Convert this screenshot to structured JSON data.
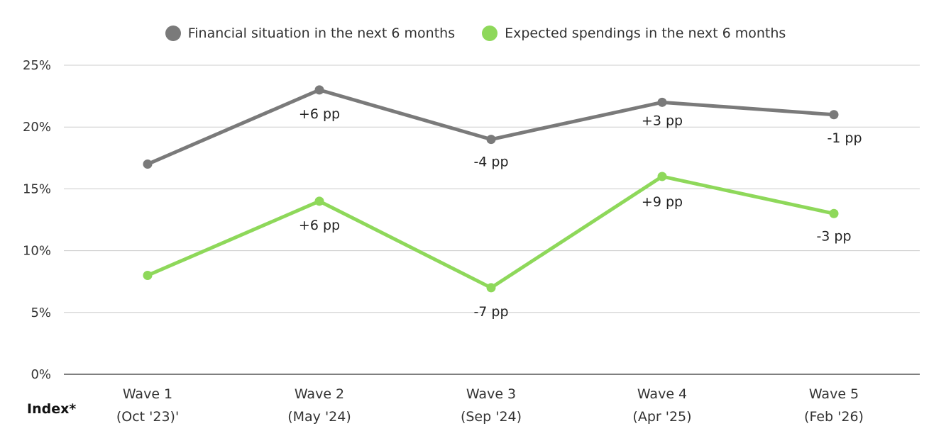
{
  "legend": {
    "series0": "Financial situation in the next 6 months",
    "series1": "Expected spendings in the next 6 months"
  },
  "row_label": "Index*",
  "colors": {
    "series0": "#7a7a7a",
    "series1": "#8ed85a",
    "grid": "#cccccc",
    "axis": "#555555"
  },
  "chart_data": {
    "type": "line",
    "categories": [
      [
        "Wave 1",
        "(Oct '23)'"
      ],
      [
        "Wave 2",
        "(May '24)"
      ],
      [
        "Wave 3",
        "(Sep '24)"
      ],
      [
        "Wave 4",
        "(Apr '25)"
      ],
      [
        "Wave 5",
        "(Feb '26)"
      ]
    ],
    "ylim": [
      0,
      25
    ],
    "yticks": [
      "0%",
      "5%",
      "10%",
      "15%",
      "20%",
      "25%"
    ],
    "grid": true,
    "legend_position": "top-center",
    "series": [
      {
        "name": "Financial situation in the next 6 months",
        "values": [
          17,
          23,
          19,
          22,
          21
        ],
        "labels": [
          "",
          "+6 pp",
          "-4 pp",
          "+3 pp",
          "-1 pp"
        ]
      },
      {
        "name": "Expected spendings in the next 6 months",
        "values": [
          8,
          14,
          7,
          16,
          13
        ],
        "labels": [
          "",
          "+6 pp",
          "-7 pp",
          "+9 pp",
          "-3 pp"
        ]
      }
    ]
  }
}
